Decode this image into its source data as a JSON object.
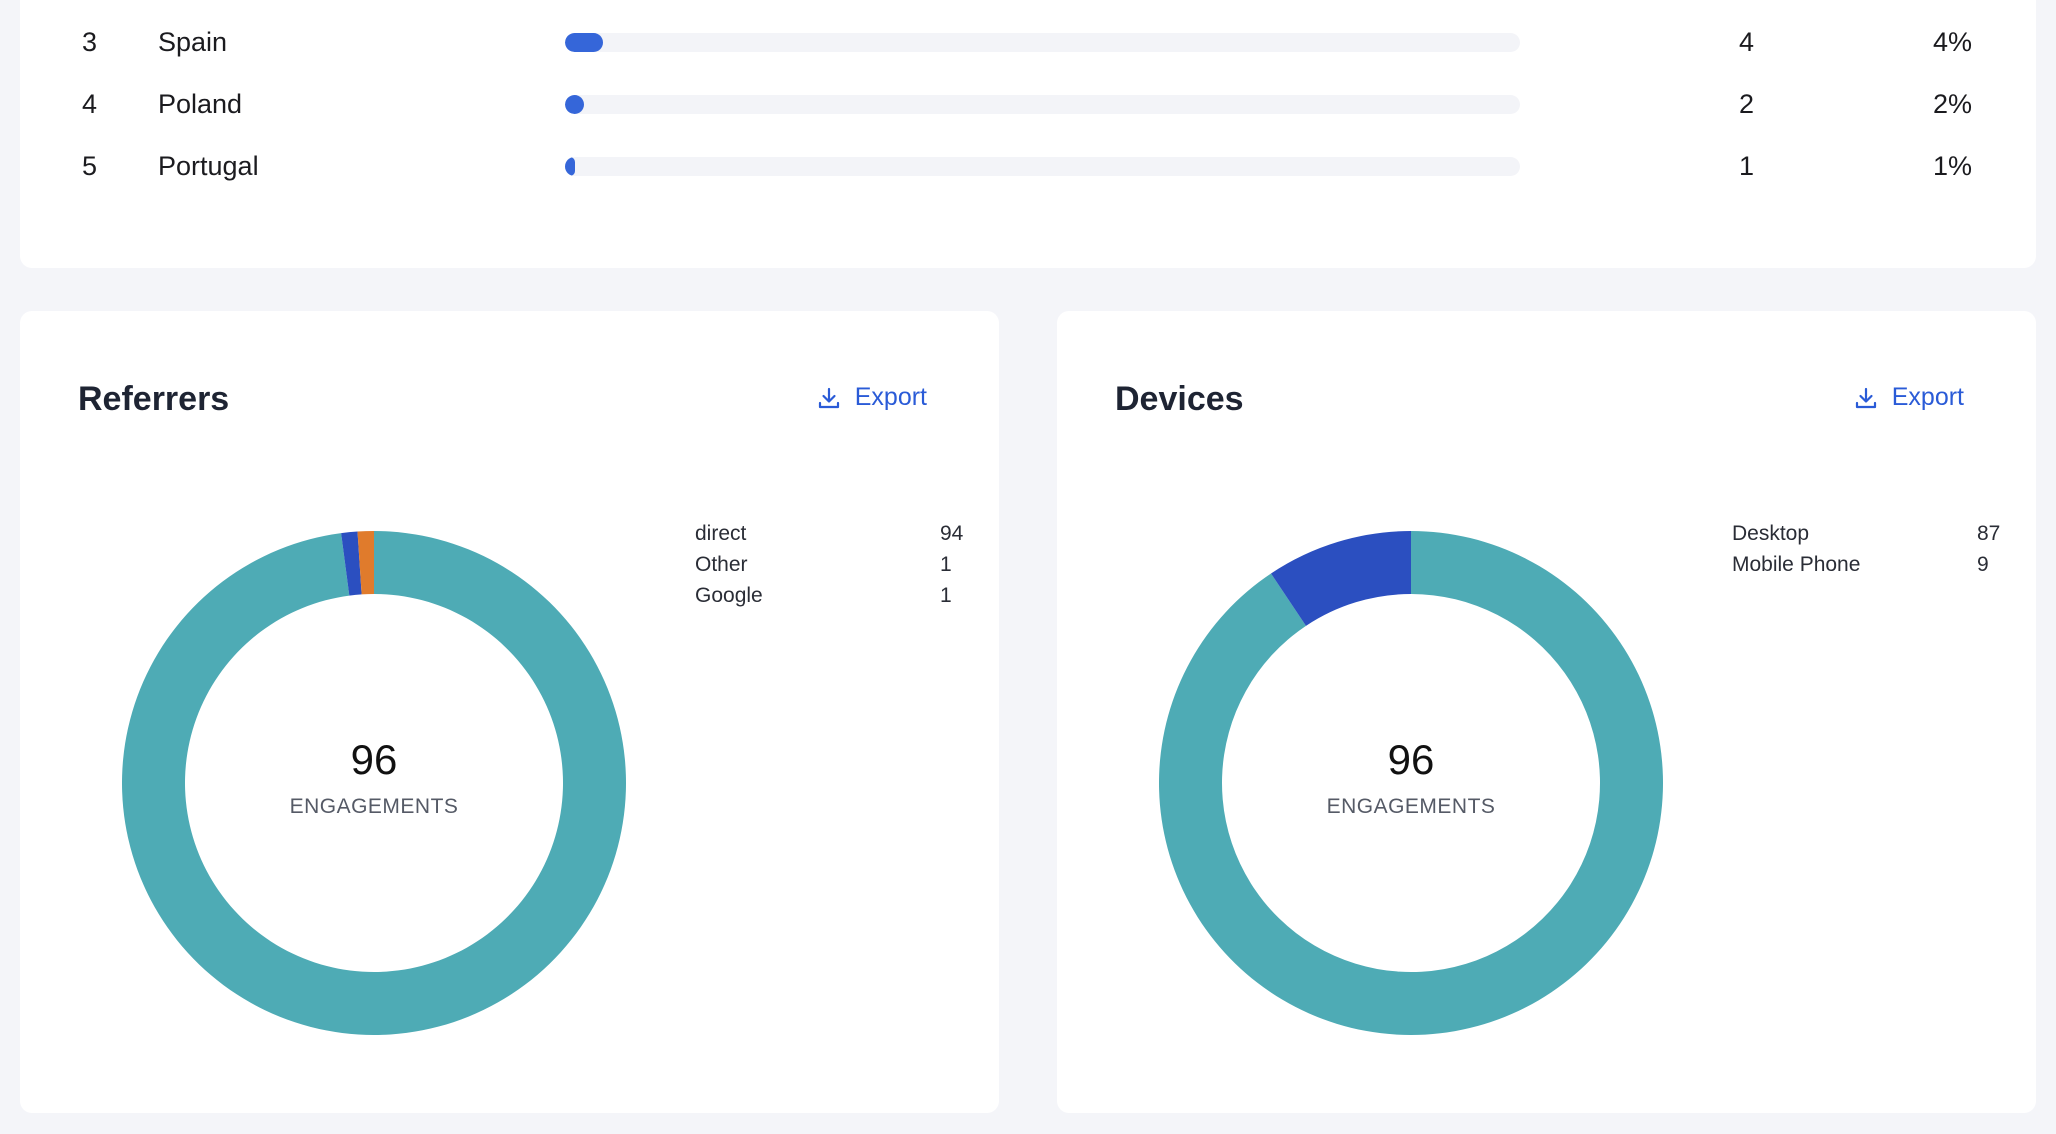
{
  "countries": {
    "rows": [
      {
        "rank": "3",
        "name": "Spain",
        "count": "4",
        "percent": "4%",
        "fraction": 0.04
      },
      {
        "rank": "4",
        "name": "Poland",
        "count": "2",
        "percent": "2%",
        "fraction": 0.02
      },
      {
        "rank": "5",
        "name": "Portugal",
        "count": "1",
        "percent": "1%",
        "fraction": 0.01
      }
    ],
    "bar_color": "#3566d9"
  },
  "referrers": {
    "title": "Referrers",
    "export_label": "Export",
    "total": "96",
    "caption": "ENGAGEMENTS",
    "items": [
      {
        "label": "direct",
        "value": "94"
      },
      {
        "label": "Other",
        "value": "1"
      },
      {
        "label": "Google",
        "value": "1"
      }
    ]
  },
  "devices": {
    "title": "Devices",
    "export_label": "Export",
    "total": "96",
    "caption": "ENGAGEMENTS",
    "items": [
      {
        "label": "Desktop",
        "value": "87"
      },
      {
        "label": "Mobile Phone",
        "value": "9"
      }
    ]
  },
  "chart_data": [
    {
      "type": "pie",
      "categories": [
        "direct",
        "Other",
        "Google"
      ],
      "values": [
        94,
        1,
        1
      ],
      "colors": [
        "#4eabb5",
        "#2b4fc0",
        "#e07b2c"
      ],
      "total": 96
    },
    {
      "type": "pie",
      "categories": [
        "Desktop",
        "Mobile Phone"
      ],
      "values": [
        87,
        9
      ],
      "colors": [
        "#4eabb5",
        "#2b4fc0"
      ],
      "total": 96
    }
  ],
  "icons": {
    "export": "download-icon"
  }
}
